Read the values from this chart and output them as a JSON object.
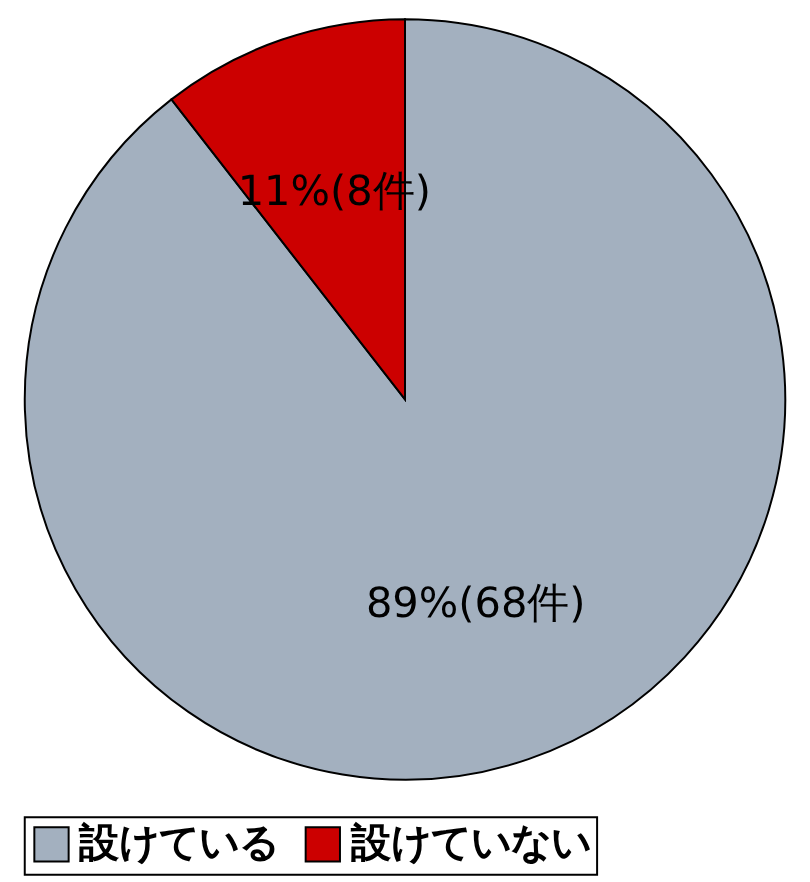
{
  "chart_data": {
    "type": "pie",
    "categories": [
      "設けている",
      "設けていない"
    ],
    "values": [
      68,
      8
    ],
    "colors": [
      "#a3b0bf",
      "#cc0000"
    ],
    "value_labels": [
      "89%(68件)",
      "11%(8件)"
    ],
    "legend": "bottom"
  }
}
